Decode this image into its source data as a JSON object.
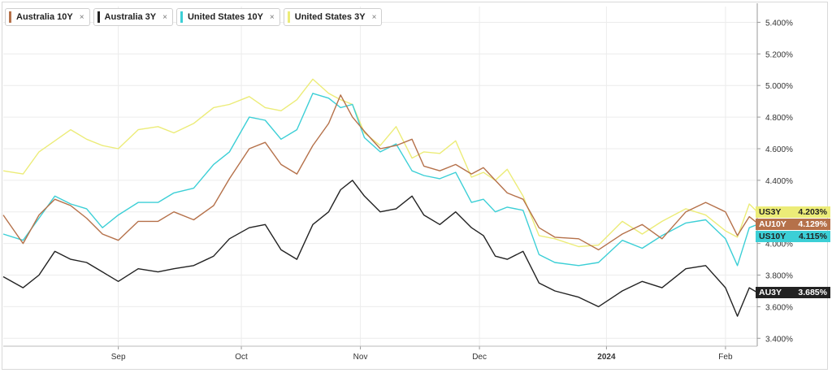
{
  "legend": [
    {
      "label": "Australia 10Y",
      "color": "#b5714a",
      "close": "×"
    },
    {
      "label": "Australia 3Y",
      "color": "#222222",
      "close": "×"
    },
    {
      "label": "United States 10Y",
      "color": "#3ccfd6",
      "close": "×"
    },
    {
      "label": "United States 3Y",
      "color": "#ecec78",
      "close": "×"
    }
  ],
  "badges": {
    "us3y": {
      "symbol": "US3Y",
      "value": "4.203%",
      "bg": "#ecec78",
      "fg": "#222222"
    },
    "au10y": {
      "symbol": "AU10Y",
      "value": "4.129%",
      "bg": "#b5714a",
      "fg": "#ffffff"
    },
    "us10y": {
      "symbol": "US10Y",
      "value": "4.115%",
      "bg": "#3ccfd6",
      "fg": "#222222"
    },
    "au3y": {
      "symbol": "AU3Y",
      "value": "3.685%",
      "bg": "#222222",
      "fg": "#ffffff"
    }
  },
  "chart_data": {
    "type": "line",
    "ylim": [
      3.35,
      5.5
    ],
    "y_ticks": [
      "5.400%",
      "5.200%",
      "5.000%",
      "4.800%",
      "4.600%",
      "4.400%",
      "4.200%",
      "4.000%",
      "3.800%",
      "3.600%",
      "3.400%"
    ],
    "y_tick_values": [
      5.4,
      5.2,
      5.0,
      4.8,
      4.6,
      4.4,
      4.2,
      4.0,
      3.8,
      3.6,
      3.4
    ],
    "x_ticks": [
      "Sep",
      "Oct",
      "Nov",
      "Dec",
      "2024",
      "Feb"
    ],
    "x_tick_dates": [
      "2023-09-01",
      "2023-10-02",
      "2023-11-01",
      "2023-12-01",
      "2024-01-02",
      "2024-02-01"
    ],
    "x_range": [
      "2023-08-03",
      "2024-02-09"
    ],
    "grid": true,
    "legend_position": "top-left",
    "series": [
      {
        "name": "Australia 10Y",
        "color": "#b5714a",
        "points": [
          [
            "2023-08-03",
            4.18
          ],
          [
            "2023-08-08",
            4.0
          ],
          [
            "2023-08-12",
            4.18
          ],
          [
            "2023-08-16",
            4.28
          ],
          [
            "2023-08-20",
            4.24
          ],
          [
            "2023-08-24",
            4.16
          ],
          [
            "2023-08-28",
            4.06
          ],
          [
            "2023-09-01",
            4.02
          ],
          [
            "2023-09-06",
            4.14
          ],
          [
            "2023-09-11",
            4.14
          ],
          [
            "2023-09-15",
            4.2
          ],
          [
            "2023-09-20",
            4.15
          ],
          [
            "2023-09-25",
            4.24
          ],
          [
            "2023-09-29",
            4.41
          ],
          [
            "2023-10-04",
            4.6
          ],
          [
            "2023-10-08",
            4.64
          ],
          [
            "2023-10-12",
            4.5
          ],
          [
            "2023-10-16",
            4.44
          ],
          [
            "2023-10-20",
            4.62
          ],
          [
            "2023-10-24",
            4.76
          ],
          [
            "2023-10-27",
            4.94
          ],
          [
            "2023-10-30",
            4.8
          ],
          [
            "2023-11-02",
            4.71
          ],
          [
            "2023-11-06",
            4.6
          ],
          [
            "2023-11-10",
            4.62
          ],
          [
            "2023-11-14",
            4.66
          ],
          [
            "2023-11-17",
            4.49
          ],
          [
            "2023-11-21",
            4.46
          ],
          [
            "2023-11-25",
            4.5
          ],
          [
            "2023-11-29",
            4.44
          ],
          [
            "2023-12-02",
            4.48
          ],
          [
            "2023-12-05",
            4.4
          ],
          [
            "2023-12-08",
            4.32
          ],
          [
            "2023-12-12",
            4.28
          ],
          [
            "2023-12-16",
            4.1
          ],
          [
            "2023-12-20",
            4.04
          ],
          [
            "2023-12-26",
            4.03
          ],
          [
            "2023-12-31",
            3.96
          ],
          [
            "2024-01-06",
            4.06
          ],
          [
            "2024-01-11",
            4.12
          ],
          [
            "2024-01-16",
            4.03
          ],
          [
            "2024-01-22",
            4.2
          ],
          [
            "2024-01-27",
            4.26
          ],
          [
            "2024-02-01",
            4.2
          ],
          [
            "2024-02-04",
            4.05
          ],
          [
            "2024-02-07",
            4.17
          ],
          [
            "2024-02-09",
            4.13
          ]
        ]
      },
      {
        "name": "Australia 3Y",
        "color": "#222222",
        "points": [
          [
            "2023-08-03",
            3.79
          ],
          [
            "2023-08-08",
            3.72
          ],
          [
            "2023-08-12",
            3.8
          ],
          [
            "2023-08-16",
            3.95
          ],
          [
            "2023-08-20",
            3.9
          ],
          [
            "2023-08-24",
            3.88
          ],
          [
            "2023-08-28",
            3.82
          ],
          [
            "2023-09-01",
            3.76
          ],
          [
            "2023-09-06",
            3.84
          ],
          [
            "2023-09-11",
            3.82
          ],
          [
            "2023-09-15",
            3.84
          ],
          [
            "2023-09-20",
            3.86
          ],
          [
            "2023-09-25",
            3.92
          ],
          [
            "2023-09-29",
            4.03
          ],
          [
            "2023-10-04",
            4.1
          ],
          [
            "2023-10-08",
            4.12
          ],
          [
            "2023-10-12",
            3.96
          ],
          [
            "2023-10-16",
            3.9
          ],
          [
            "2023-10-20",
            4.12
          ],
          [
            "2023-10-24",
            4.2
          ],
          [
            "2023-10-27",
            4.34
          ],
          [
            "2023-10-30",
            4.4
          ],
          [
            "2023-11-02",
            4.3
          ],
          [
            "2023-11-06",
            4.2
          ],
          [
            "2023-11-10",
            4.22
          ],
          [
            "2023-11-14",
            4.3
          ],
          [
            "2023-11-17",
            4.18
          ],
          [
            "2023-11-21",
            4.12
          ],
          [
            "2023-11-25",
            4.2
          ],
          [
            "2023-11-29",
            4.1
          ],
          [
            "2023-12-02",
            4.05
          ],
          [
            "2023-12-05",
            3.92
          ],
          [
            "2023-12-08",
            3.9
          ],
          [
            "2023-12-12",
            3.95
          ],
          [
            "2023-12-16",
            3.75
          ],
          [
            "2023-12-20",
            3.7
          ],
          [
            "2023-12-26",
            3.66
          ],
          [
            "2023-12-31",
            3.6
          ],
          [
            "2024-01-06",
            3.7
          ],
          [
            "2024-01-11",
            3.76
          ],
          [
            "2024-01-16",
            3.72
          ],
          [
            "2024-01-22",
            3.84
          ],
          [
            "2024-01-27",
            3.86
          ],
          [
            "2024-02-01",
            3.72
          ],
          [
            "2024-02-04",
            3.54
          ],
          [
            "2024-02-07",
            3.72
          ],
          [
            "2024-02-09",
            3.69
          ]
        ]
      },
      {
        "name": "United States 10Y",
        "color": "#3ccfd6",
        "points": [
          [
            "2023-08-03",
            4.06
          ],
          [
            "2023-08-08",
            4.02
          ],
          [
            "2023-08-12",
            4.16
          ],
          [
            "2023-08-16",
            4.3
          ],
          [
            "2023-08-20",
            4.25
          ],
          [
            "2023-08-24",
            4.22
          ],
          [
            "2023-08-28",
            4.1
          ],
          [
            "2023-09-01",
            4.18
          ],
          [
            "2023-09-06",
            4.26
          ],
          [
            "2023-09-11",
            4.26
          ],
          [
            "2023-09-15",
            4.32
          ],
          [
            "2023-09-20",
            4.35
          ],
          [
            "2023-09-25",
            4.5
          ],
          [
            "2023-09-29",
            4.58
          ],
          [
            "2023-10-04",
            4.8
          ],
          [
            "2023-10-08",
            4.78
          ],
          [
            "2023-10-12",
            4.66
          ],
          [
            "2023-10-16",
            4.72
          ],
          [
            "2023-10-20",
            4.95
          ],
          [
            "2023-10-24",
            4.92
          ],
          [
            "2023-10-27",
            4.86
          ],
          [
            "2023-10-30",
            4.88
          ],
          [
            "2023-11-02",
            4.67
          ],
          [
            "2023-11-06",
            4.58
          ],
          [
            "2023-11-10",
            4.63
          ],
          [
            "2023-11-14",
            4.46
          ],
          [
            "2023-11-17",
            4.43
          ],
          [
            "2023-11-21",
            4.41
          ],
          [
            "2023-11-25",
            4.45
          ],
          [
            "2023-11-29",
            4.26
          ],
          [
            "2023-12-02",
            4.28
          ],
          [
            "2023-12-05",
            4.2
          ],
          [
            "2023-12-08",
            4.23
          ],
          [
            "2023-12-12",
            4.21
          ],
          [
            "2023-12-16",
            3.93
          ],
          [
            "2023-12-20",
            3.88
          ],
          [
            "2023-12-26",
            3.86
          ],
          [
            "2023-12-31",
            3.88
          ],
          [
            "2024-01-06",
            4.02
          ],
          [
            "2024-01-11",
            3.97
          ],
          [
            "2024-01-16",
            4.05
          ],
          [
            "2024-01-22",
            4.13
          ],
          [
            "2024-01-27",
            4.15
          ],
          [
            "2024-02-01",
            4.03
          ],
          [
            "2024-02-04",
            3.86
          ],
          [
            "2024-02-07",
            4.1
          ],
          [
            "2024-02-09",
            4.12
          ]
        ]
      },
      {
        "name": "United States 3Y",
        "color": "#ecec78",
        "points": [
          [
            "2023-08-03",
            4.46
          ],
          [
            "2023-08-08",
            4.44
          ],
          [
            "2023-08-12",
            4.58
          ],
          [
            "2023-08-16",
            4.65
          ],
          [
            "2023-08-20",
            4.72
          ],
          [
            "2023-08-24",
            4.66
          ],
          [
            "2023-08-28",
            4.62
          ],
          [
            "2023-09-01",
            4.6
          ],
          [
            "2023-09-06",
            4.72
          ],
          [
            "2023-09-11",
            4.74
          ],
          [
            "2023-09-15",
            4.7
          ],
          [
            "2023-09-20",
            4.76
          ],
          [
            "2023-09-25",
            4.86
          ],
          [
            "2023-09-29",
            4.88
          ],
          [
            "2023-10-04",
            4.93
          ],
          [
            "2023-10-08",
            4.86
          ],
          [
            "2023-10-12",
            4.84
          ],
          [
            "2023-10-16",
            4.91
          ],
          [
            "2023-10-20",
            5.04
          ],
          [
            "2023-10-24",
            4.95
          ],
          [
            "2023-10-27",
            4.91
          ],
          [
            "2023-10-30",
            4.88
          ],
          [
            "2023-11-02",
            4.7
          ],
          [
            "2023-11-06",
            4.62
          ],
          [
            "2023-11-10",
            4.74
          ],
          [
            "2023-11-14",
            4.54
          ],
          [
            "2023-11-17",
            4.58
          ],
          [
            "2023-11-21",
            4.57
          ],
          [
            "2023-11-25",
            4.65
          ],
          [
            "2023-11-29",
            4.42
          ],
          [
            "2023-12-02",
            4.45
          ],
          [
            "2023-12-05",
            4.4
          ],
          [
            "2023-12-08",
            4.47
          ],
          [
            "2023-12-12",
            4.3
          ],
          [
            "2023-12-16",
            4.05
          ],
          [
            "2023-12-20",
            4.03
          ],
          [
            "2023-12-26",
            3.98
          ],
          [
            "2023-12-31",
            3.99
          ],
          [
            "2024-01-06",
            4.14
          ],
          [
            "2024-01-11",
            4.06
          ],
          [
            "2024-01-16",
            4.14
          ],
          [
            "2024-01-22",
            4.22
          ],
          [
            "2024-01-27",
            4.18
          ],
          [
            "2024-02-01",
            4.08
          ],
          [
            "2024-02-04",
            4.04
          ],
          [
            "2024-02-07",
            4.25
          ],
          [
            "2024-02-09",
            4.2
          ]
        ]
      }
    ]
  }
}
